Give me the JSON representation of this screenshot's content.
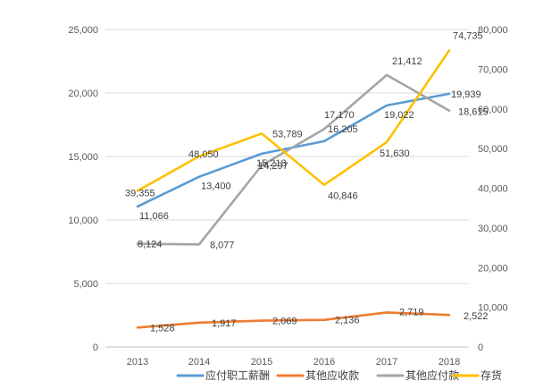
{
  "chart_data": {
    "type": "line",
    "categories": [
      "2013",
      "2014",
      "2015",
      "2016",
      "2017",
      "2018"
    ],
    "y_left": {
      "ticks": [
        "0",
        "5,000",
        "10,000",
        "15,000",
        "20,000",
        "25,000"
      ],
      "ylim": [
        0,
        25000
      ]
    },
    "y_right": {
      "ticks": [
        "0",
        "10,000",
        "20,000",
        "30,000",
        "40,000",
        "50,000",
        "60,000",
        "70,000",
        "80,000"
      ],
      "ylim": [
        0,
        80000
      ]
    },
    "grid": true,
    "legend_position": "bottom",
    "series": [
      {
        "name": "应付职工薪酬",
        "axis": "left",
        "color": "#5B9BD5",
        "values": [
          11066,
          13400,
          15218,
          16205,
          19022,
          19939
        ],
        "labels": [
          "11,066",
          "13,400",
          "15,218",
          "16,205",
          "19,022",
          "19,939"
        ]
      },
      {
        "name": "其他应收款",
        "axis": "left",
        "color": "#ED7D31",
        "values": [
          1528,
          1917,
          2069,
          2136,
          2719,
          2522
        ],
        "labels": [
          "1,528",
          "1,917",
          "2,069",
          "2,136",
          "2,719",
          "2,522"
        ]
      },
      {
        "name": "其他应付款",
        "axis": "left",
        "color": "#A5A5A5",
        "values": [
          8124,
          8077,
          14297,
          17170,
          21412,
          18615
        ],
        "labels": [
          "8,124",
          "8,077",
          "14,297",
          "17,170",
          "21,412",
          "18,615"
        ]
      },
      {
        "name": "存货",
        "axis": "right",
        "color": "#FFC000",
        "values": [
          39355,
          48050,
          53789,
          40846,
          51630,
          74735
        ],
        "labels": [
          "39,355",
          "48,050",
          "53,789",
          "40,846",
          "51,630",
          "74,735"
        ]
      }
    ]
  }
}
